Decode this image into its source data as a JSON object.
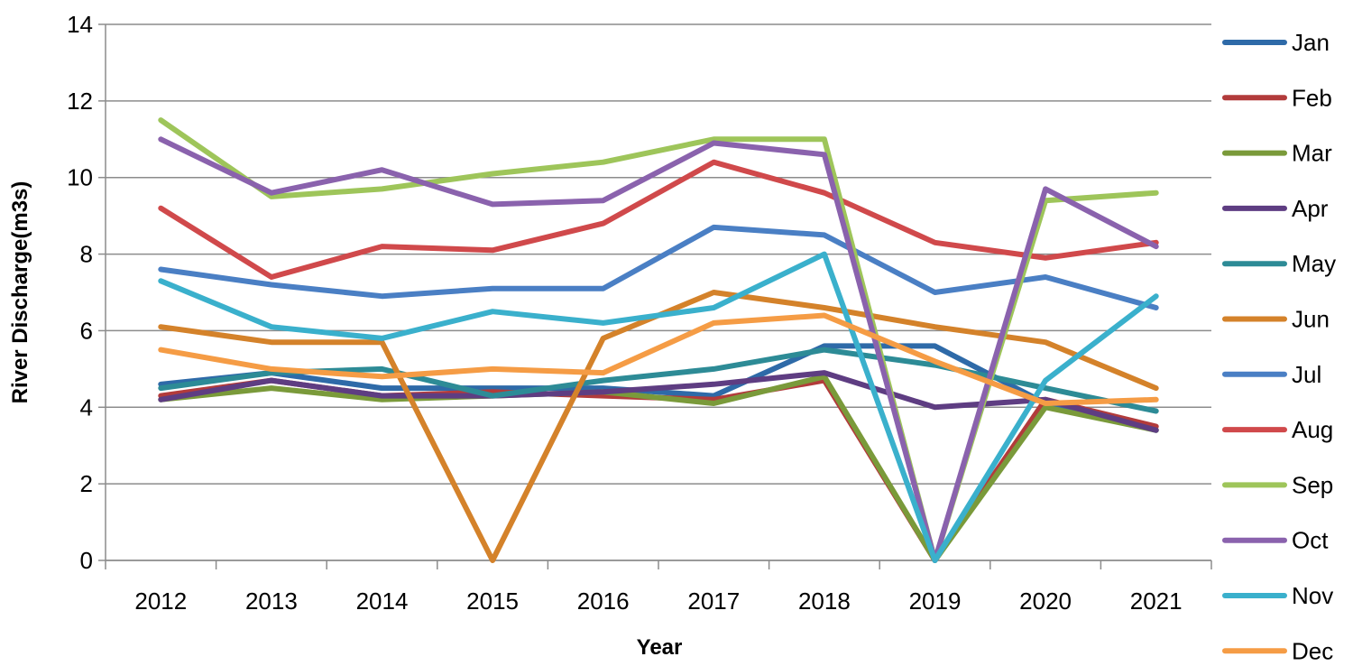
{
  "chart_data": {
    "type": "line",
    "xlabel": "Year",
    "ylabel": "River Discharge(m3s)",
    "ylim": [
      0,
      14
    ],
    "yticks": [
      0,
      2,
      4,
      6,
      8,
      10,
      12,
      14
    ],
    "grid": true,
    "legend_position": "right",
    "categories": [
      "2012",
      "2013",
      "2014",
      "2015",
      "2016",
      "2017",
      "2018",
      "2019",
      "2020",
      "2021"
    ],
    "series": [
      {
        "name": "Jan",
        "color": "#2e6aa8",
        "values": [
          4.6,
          4.9,
          4.5,
          4.5,
          4.5,
          4.3,
          5.6,
          5.6,
          4.1,
          3.4
        ]
      },
      {
        "name": "Feb",
        "color": "#b23b3b",
        "values": [
          4.3,
          4.7,
          4.3,
          4.4,
          4.3,
          4.2,
          4.7,
          0.0,
          4.2,
          3.5
        ]
      },
      {
        "name": "Mar",
        "color": "#7a9a3a",
        "values": [
          4.2,
          4.5,
          4.2,
          4.3,
          4.4,
          4.1,
          4.8,
          0.0,
          4.0,
          3.4
        ]
      },
      {
        "name": "Apr",
        "color": "#5e3d82",
        "values": [
          4.2,
          4.7,
          4.3,
          4.3,
          4.4,
          4.6,
          4.9,
          4.0,
          4.2,
          3.4
        ]
      },
      {
        "name": "May",
        "color": "#2d8b96",
        "values": [
          4.5,
          4.9,
          5.0,
          4.3,
          4.7,
          5.0,
          5.5,
          5.1,
          4.5,
          3.9
        ]
      },
      {
        "name": "Jun",
        "color": "#d4822a",
        "values": [
          6.1,
          5.7,
          5.7,
          0.0,
          5.8,
          7.0,
          6.6,
          6.1,
          5.7,
          4.5
        ]
      },
      {
        "name": "Jul",
        "color": "#4a7fc4",
        "values": [
          7.6,
          7.2,
          6.9,
          7.1,
          7.1,
          8.7,
          8.5,
          7.0,
          7.4,
          6.6
        ]
      },
      {
        "name": "Aug",
        "color": "#d0494b",
        "values": [
          9.2,
          7.4,
          8.2,
          8.1,
          8.8,
          10.4,
          9.6,
          8.3,
          7.9,
          8.3
        ]
      },
      {
        "name": "Sep",
        "color": "#9ec55a",
        "values": [
          11.5,
          9.5,
          9.7,
          10.1,
          10.4,
          11.0,
          11.0,
          0.0,
          9.4,
          9.6
        ]
      },
      {
        "name": "Oct",
        "color": "#8a62ad",
        "values": [
          11.0,
          9.6,
          10.2,
          9.3,
          9.4,
          10.9,
          10.6,
          0.0,
          9.7,
          8.2
        ]
      },
      {
        "name": "Nov",
        "color": "#3ab0cc",
        "values": [
          7.3,
          6.1,
          5.8,
          6.5,
          6.2,
          6.6,
          8.0,
          0.0,
          4.7,
          6.9
        ]
      },
      {
        "name": "Dec",
        "color": "#f59c45",
        "values": [
          5.5,
          5.0,
          4.8,
          5.0,
          4.9,
          6.2,
          6.4,
          5.2,
          4.1,
          4.2
        ]
      }
    ]
  }
}
